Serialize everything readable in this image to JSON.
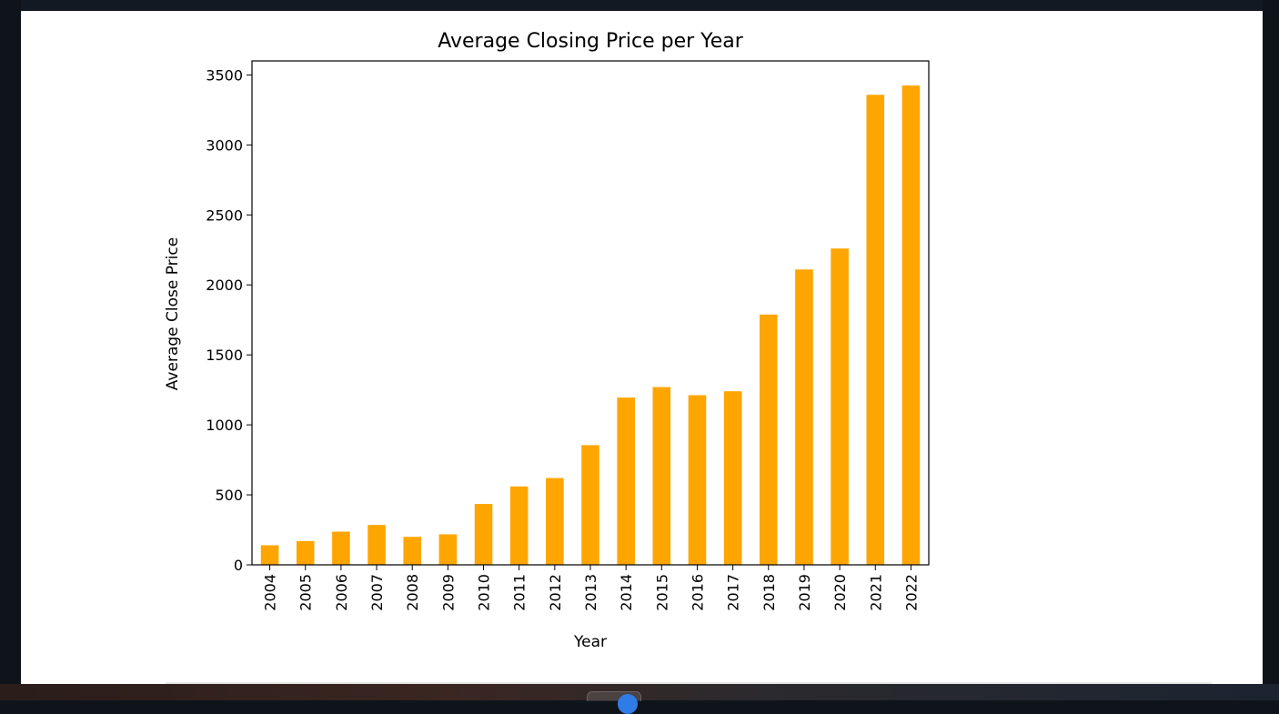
{
  "chart_data": {
    "type": "bar",
    "title": "Average Closing Price per Year",
    "xlabel": "Year",
    "ylabel": "Average Close Price",
    "categories": [
      "2004",
      "2005",
      "2006",
      "2007",
      "2008",
      "2009",
      "2010",
      "2011",
      "2012",
      "2013",
      "2014",
      "2015",
      "2016",
      "2017",
      "2018",
      "2019",
      "2020",
      "2021",
      "2022"
    ],
    "values": [
      140,
      170,
      237,
      285,
      200,
      218,
      435,
      560,
      620,
      855,
      1195,
      1270,
      1212,
      1240,
      1788,
      2110,
      2260,
      3358,
      3425
    ],
    "ylim": [
      0,
      3600
    ],
    "yticks": [
      0,
      500,
      1000,
      1500,
      2000,
      2500,
      3000,
      3500
    ],
    "bar_color": "#ffa500",
    "grid": false,
    "legend": "none"
  },
  "theme": {
    "background": "#0f141b",
    "panel": "#ffffff"
  }
}
